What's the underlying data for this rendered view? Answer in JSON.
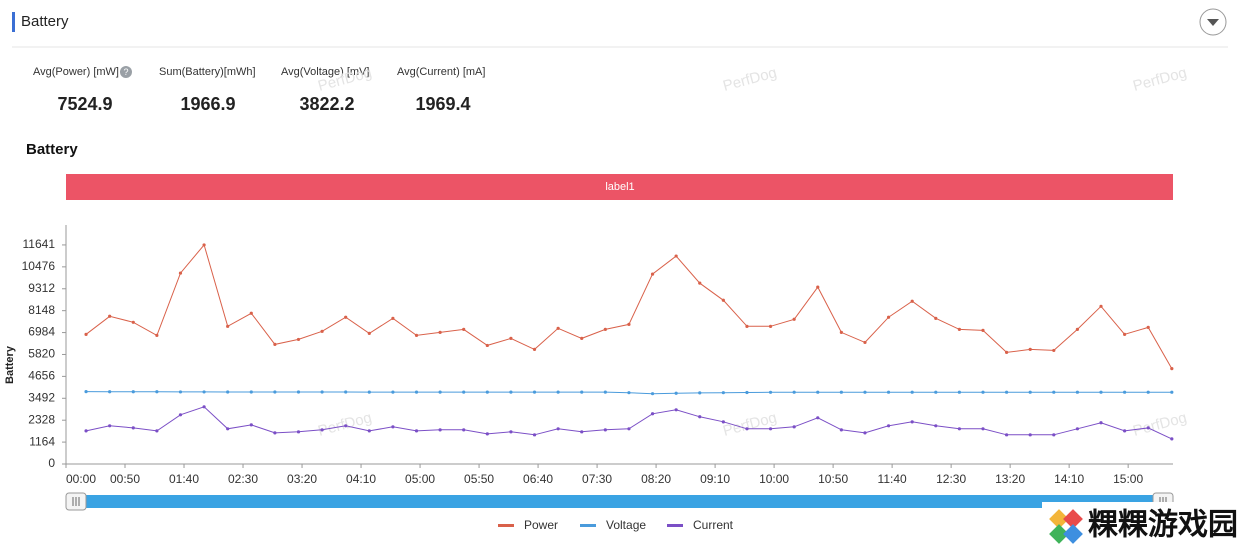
{
  "header": {
    "title": "Battery"
  },
  "stats": [
    {
      "label": "Avg(Power) [mW]",
      "value": 7524.9
    },
    {
      "label": "Sum(Battery)[mWh]",
      "value": 1966.9
    },
    {
      "label": "Avg(Voltage) [mV]",
      "value": 3822.2
    },
    {
      "label": "Avg(Current) [mA]",
      "value": 1969.4
    }
  ],
  "watermark": "PerfDog",
  "site_logo": "粿粿游戏园",
  "chart_data": {
    "type": "line",
    "title": "Battery",
    "band_label": "label1",
    "band_color": "#ec5466",
    "y_label": "Battery",
    "x": [
      17,
      37,
      57,
      77,
      97,
      117,
      137,
      157,
      177,
      197,
      217,
      237,
      257,
      277,
      297,
      317,
      337,
      357,
      377,
      397,
      417,
      437,
      457,
      477,
      497,
      517,
      537,
      557,
      577,
      597,
      617,
      637,
      657,
      677,
      697,
      717,
      737,
      757,
      777,
      797,
      817,
      837,
      857,
      877,
      897,
      917,
      937
    ],
    "xlim": [
      0,
      938
    ],
    "xticks": [
      {
        "value": 0,
        "label": "00:00"
      },
      {
        "value": 50,
        "label": "00:50"
      },
      {
        "value": 100,
        "label": "01:40"
      },
      {
        "value": 150,
        "label": "02:30"
      },
      {
        "value": 200,
        "label": "03:20"
      },
      {
        "value": 250,
        "label": "04:10"
      },
      {
        "value": 300,
        "label": "05:00"
      },
      {
        "value": 350,
        "label": "05:50"
      },
      {
        "value": 400,
        "label": "06:40"
      },
      {
        "value": 450,
        "label": "07:30"
      },
      {
        "value": 500,
        "label": "08:20"
      },
      {
        "value": 550,
        "label": "09:10"
      },
      {
        "value": 600,
        "label": "10:00"
      },
      {
        "value": 650,
        "label": "10:50"
      },
      {
        "value": 700,
        "label": "11:40"
      },
      {
        "value": 750,
        "label": "12:30"
      },
      {
        "value": 800,
        "label": "13:20"
      },
      {
        "value": 850,
        "label": "14:10"
      },
      {
        "value": 900,
        "label": "15:00"
      }
    ],
    "ylim": [
      0,
      12700
    ],
    "yticks": [
      0,
      1164,
      2328,
      3492,
      4656,
      5820,
      6984,
      8148,
      9312,
      10476,
      11641
    ],
    "grid": false,
    "legend": "bottom",
    "series": [
      {
        "name": "Power",
        "color": "#d9614a",
        "values": [
          6890,
          7850,
          7530,
          6835,
          10146,
          11641,
          7316,
          8010,
          6355,
          6620,
          7050,
          7800,
          6940,
          7740,
          6835,
          6995,
          7155,
          6300,
          6675,
          6090,
          7210,
          6675,
          7155,
          7420,
          10090,
          11050,
          9610,
          8700,
          7315,
          7315,
          7690,
          9400,
          6995,
          6460,
          7800,
          8650,
          7740,
          7155,
          7100,
          5930,
          6090,
          6035,
          7155,
          8380,
          6890,
          7260,
          5070
        ]
      },
      {
        "name": "Voltage",
        "color": "#4a9bdc",
        "values": [
          3845,
          3840,
          3840,
          3840,
          3830,
          3830,
          3825,
          3825,
          3825,
          3825,
          3825,
          3825,
          3820,
          3820,
          3820,
          3820,
          3820,
          3820,
          3820,
          3820,
          3820,
          3820,
          3820,
          3790,
          3737,
          3760,
          3780,
          3790,
          3800,
          3810,
          3815,
          3815,
          3815,
          3815,
          3815,
          3815,
          3815,
          3815,
          3815,
          3815,
          3815,
          3815,
          3815,
          3815,
          3815,
          3815,
          3815
        ]
      },
      {
        "name": "Current",
        "color": "#7b4fc6",
        "values": [
          1760,
          2030,
          1920,
          1760,
          2615,
          3040,
          1870,
          2080,
          1655,
          1710,
          1815,
          2030,
          1760,
          1975,
          1760,
          1815,
          1815,
          1600,
          1710,
          1550,
          1870,
          1710,
          1815,
          1870,
          2670,
          2880,
          2510,
          2240,
          1870,
          1870,
          1975,
          2455,
          1815,
          1655,
          2030,
          2240,
          2030,
          1870,
          1870,
          1550,
          1550,
          1550,
          1870,
          2190,
          1760,
          1920,
          1335
        ]
      }
    ]
  }
}
